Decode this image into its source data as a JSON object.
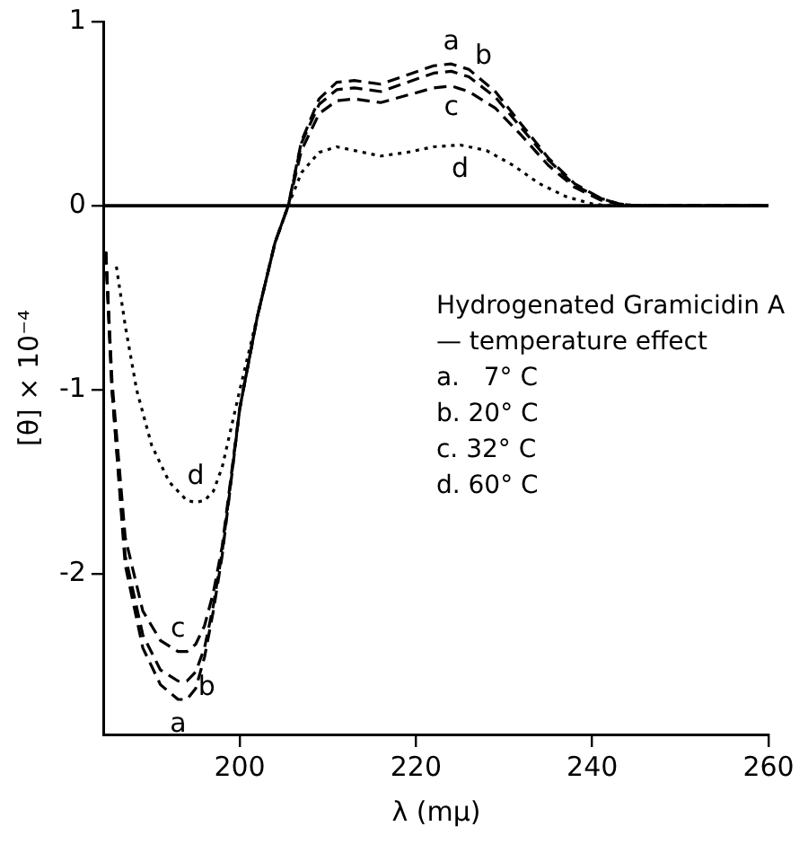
{
  "chart_data": {
    "type": "line",
    "xlabel": "λ (mμ)",
    "ylabel": "[θ] × 10⁻⁴",
    "xlim": [
      184.6,
      260
    ],
    "xticks": [
      200,
      220,
      240,
      260
    ],
    "ylim": [
      -2.87,
      1
    ],
    "yticks": [
      1,
      0,
      -1,
      -2
    ],
    "grid": false,
    "legend": false,
    "marker": "none",
    "ref_lines": [
      {
        "axis": "y",
        "value": 0,
        "color": "#000000",
        "line_style": "solid"
      }
    ],
    "annotations": [
      "Hydrogenated Gramicidin A",
      "— temperature effect",
      "a.   7° C",
      "b. 20° C",
      "c. 32° C",
      "d. 60° C"
    ],
    "series": [
      {
        "name": "a",
        "color": "#000000",
        "line_style": "dashed",
        "x": [
          184.8,
          185.5,
          187,
          189,
          191,
          193,
          194,
          195,
          196,
          197,
          198,
          200,
          202,
          204,
          205.5,
          207,
          209,
          211,
          213,
          216,
          219,
          222,
          224,
          226,
          229,
          232,
          235,
          238,
          241,
          243,
          245,
          250,
          260
        ],
        "values": [
          -0.25,
          -1.0,
          -1.95,
          -2.4,
          -2.6,
          -2.68,
          -2.68,
          -2.62,
          -2.45,
          -2.2,
          -1.9,
          -1.1,
          -0.6,
          -0.2,
          0,
          0.35,
          0.58,
          0.67,
          0.68,
          0.66,
          0.71,
          0.76,
          0.77,
          0.74,
          0.62,
          0.44,
          0.26,
          0.12,
          0.04,
          0.01,
          0,
          0,
          0
        ]
      },
      {
        "name": "b",
        "color": "#000000",
        "line_style": "dashed",
        "x": [
          184.8,
          185.5,
          187,
          189,
          191,
          193,
          194,
          195,
          196,
          197,
          198,
          200,
          202,
          204,
          205.5,
          207,
          209,
          211,
          213,
          216,
          219,
          222,
          224,
          226,
          229,
          232,
          235,
          238,
          241,
          243,
          245,
          250,
          260
        ],
        "values": [
          -0.25,
          -1.0,
          -1.9,
          -2.33,
          -2.52,
          -2.58,
          -2.58,
          -2.53,
          -2.4,
          -2.17,
          -1.88,
          -1.1,
          -0.6,
          -0.2,
          0,
          0.34,
          0.55,
          0.63,
          0.64,
          0.62,
          0.67,
          0.72,
          0.73,
          0.7,
          0.59,
          0.42,
          0.25,
          0.11,
          0.04,
          0.01,
          0,
          0,
          0
        ]
      },
      {
        "name": "c",
        "color": "#000000",
        "line_style": "dashed",
        "x": [
          184.8,
          185.5,
          187,
          189,
          191,
          193,
          194,
          195,
          196,
          197,
          198,
          200,
          202,
          204,
          205.5,
          207,
          209,
          211,
          213,
          216,
          219,
          222,
          224,
          226,
          229,
          232,
          235,
          238,
          241,
          243,
          245,
          250,
          260
        ],
        "values": [
          -0.25,
          -0.95,
          -1.8,
          -2.2,
          -2.36,
          -2.42,
          -2.42,
          -2.38,
          -2.28,
          -2.1,
          -1.85,
          -1.1,
          -0.6,
          -0.2,
          0,
          0.3,
          0.5,
          0.57,
          0.58,
          0.56,
          0.6,
          0.64,
          0.65,
          0.62,
          0.53,
          0.38,
          0.22,
          0.1,
          0.03,
          0.01,
          0,
          0,
          0
        ]
      },
      {
        "name": "d",
        "color": "#000000",
        "line_style": "dotted",
        "x": [
          186,
          187,
          188.3,
          190,
          192,
          194,
          195,
          196,
          197,
          198,
          200,
          202,
          204,
          205.5,
          207,
          209,
          211,
          213,
          216,
          219,
          222,
          225,
          228,
          231,
          234,
          237,
          240,
          242,
          245,
          250,
          260
        ],
        "values": [
          -0.33,
          -0.65,
          -1.0,
          -1.3,
          -1.5,
          -1.6,
          -1.61,
          -1.6,
          -1.55,
          -1.42,
          -1.0,
          -0.6,
          -0.2,
          0,
          0.18,
          0.29,
          0.32,
          0.3,
          0.27,
          0.29,
          0.32,
          0.33,
          0.3,
          0.22,
          0.12,
          0.05,
          0.01,
          0,
          0,
          0,
          0
        ]
      }
    ]
  }
}
